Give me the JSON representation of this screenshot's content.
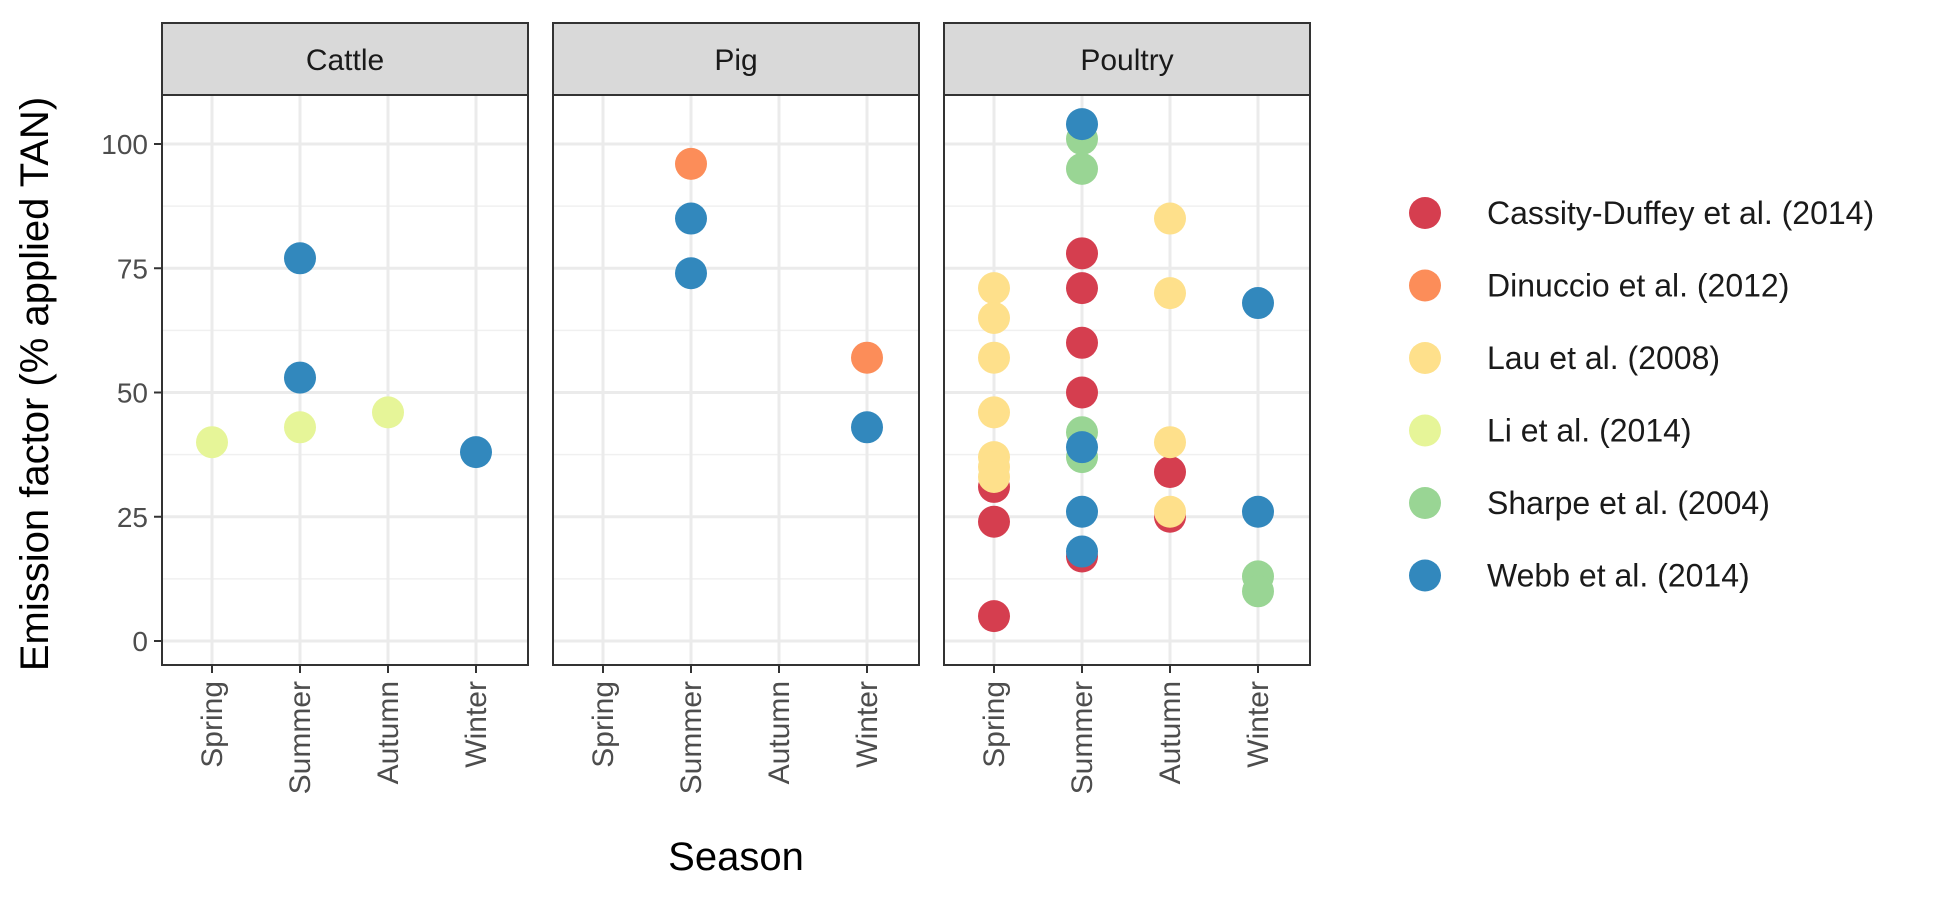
{
  "chart_data": {
    "type": "scatter",
    "xlabel": "Season",
    "ylabel": "Emission factor (% applied TAN)",
    "categories": [
      "Spring",
      "Summer",
      "Autumn",
      "Winter"
    ],
    "y_ticks": [
      0,
      25,
      50,
      75,
      100
    ],
    "ylim": [
      -5,
      110
    ],
    "grid": true,
    "legend_position": "right",
    "facets": [
      "Cattle",
      "Pig",
      "Poultry"
    ],
    "series": [
      {
        "name": "Cassity-Duffey et al. (2014)",
        "color": "#d53e4f",
        "points": [
          {
            "facet": "Poultry",
            "x": "Spring",
            "y": 31
          },
          {
            "facet": "Poultry",
            "x": "Spring",
            "y": 24
          },
          {
            "facet": "Poultry",
            "x": "Spring",
            "y": 5
          },
          {
            "facet": "Poultry",
            "x": "Summer",
            "y": 78
          },
          {
            "facet": "Poultry",
            "x": "Summer",
            "y": 71
          },
          {
            "facet": "Poultry",
            "x": "Summer",
            "y": 60
          },
          {
            "facet": "Poultry",
            "x": "Summer",
            "y": 50
          },
          {
            "facet": "Poultry",
            "x": "Summer",
            "y": 17
          },
          {
            "facet": "Poultry",
            "x": "Autumn",
            "y": 34
          },
          {
            "facet": "Poultry",
            "x": "Autumn",
            "y": 25
          }
        ]
      },
      {
        "name": "Dinuccio et al. (2012)",
        "color": "#fc8d59",
        "points": [
          {
            "facet": "Pig",
            "x": "Summer",
            "y": 96
          },
          {
            "facet": "Pig",
            "x": "Winter",
            "y": 57
          }
        ]
      },
      {
        "name": "Lau et al. (2008)",
        "color": "#fee08b",
        "points": [
          {
            "facet": "Poultry",
            "x": "Spring",
            "y": 71
          },
          {
            "facet": "Poultry",
            "x": "Spring",
            "y": 65
          },
          {
            "facet": "Poultry",
            "x": "Spring",
            "y": 57
          },
          {
            "facet": "Poultry",
            "x": "Spring",
            "y": 46
          },
          {
            "facet": "Poultry",
            "x": "Spring",
            "y": 37
          },
          {
            "facet": "Poultry",
            "x": "Spring",
            "y": 35
          },
          {
            "facet": "Poultry",
            "x": "Spring",
            "y": 33
          },
          {
            "facet": "Poultry",
            "x": "Autumn",
            "y": 85
          },
          {
            "facet": "Poultry",
            "x": "Autumn",
            "y": 70
          },
          {
            "facet": "Poultry",
            "x": "Autumn",
            "y": 40
          },
          {
            "facet": "Poultry",
            "x": "Autumn",
            "y": 26
          }
        ]
      },
      {
        "name": "Li et al. (2014)",
        "color": "#e6f598",
        "points": [
          {
            "facet": "Cattle",
            "x": "Spring",
            "y": 40
          },
          {
            "facet": "Cattle",
            "x": "Summer",
            "y": 43
          },
          {
            "facet": "Cattle",
            "x": "Autumn",
            "y": 46
          }
        ]
      },
      {
        "name": "Sharpe et al. (2004)",
        "color": "#99d594",
        "points": [
          {
            "facet": "Poultry",
            "x": "Summer",
            "y": 101
          },
          {
            "facet": "Poultry",
            "x": "Summer",
            "y": 95
          },
          {
            "facet": "Poultry",
            "x": "Summer",
            "y": 42
          },
          {
            "facet": "Poultry",
            "x": "Summer",
            "y": 37
          },
          {
            "facet": "Poultry",
            "x": "Winter",
            "y": 13
          },
          {
            "facet": "Poultry",
            "x": "Winter",
            "y": 10
          }
        ]
      },
      {
        "name": "Webb et al. (2014)",
        "color": "#3288bd",
        "points": [
          {
            "facet": "Cattle",
            "x": "Summer",
            "y": 77
          },
          {
            "facet": "Cattle",
            "x": "Summer",
            "y": 53
          },
          {
            "facet": "Cattle",
            "x": "Winter",
            "y": 38
          },
          {
            "facet": "Pig",
            "x": "Summer",
            "y": 85
          },
          {
            "facet": "Pig",
            "x": "Summer",
            "y": 74
          },
          {
            "facet": "Pig",
            "x": "Winter",
            "y": 43
          },
          {
            "facet": "Poultry",
            "x": "Summer",
            "y": 104
          },
          {
            "facet": "Poultry",
            "x": "Summer",
            "y": 39
          },
          {
            "facet": "Poultry",
            "x": "Summer",
            "y": 26
          },
          {
            "facet": "Poultry",
            "x": "Summer",
            "y": 18
          },
          {
            "facet": "Poultry",
            "x": "Winter",
            "y": 68
          },
          {
            "facet": "Poultry",
            "x": "Winter",
            "y": 26
          }
        ]
      }
    ]
  }
}
